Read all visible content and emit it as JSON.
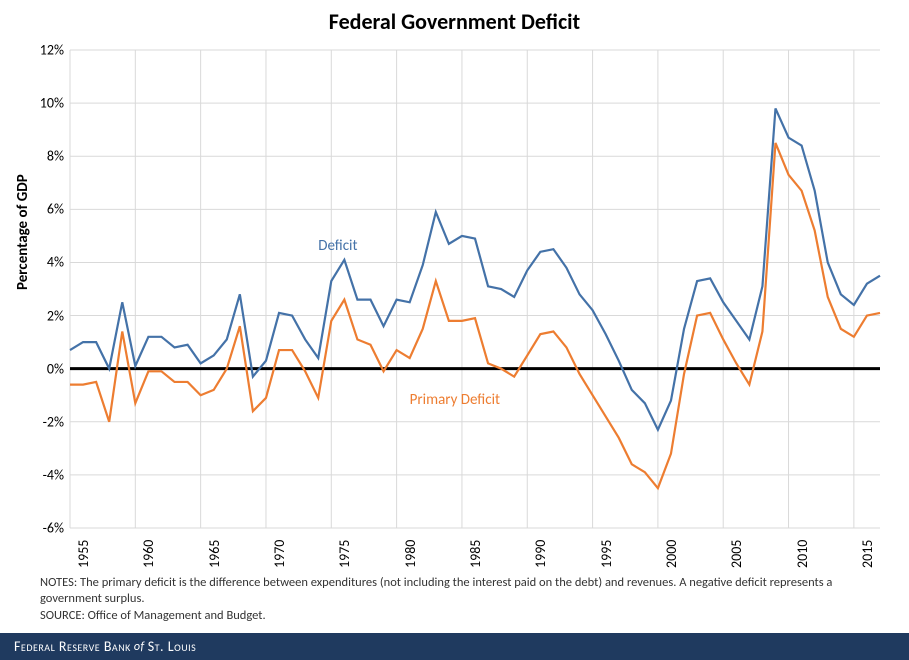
{
  "title": {
    "text": "Federal Government Deficit",
    "fontsize": 22,
    "fontweight": "bold",
    "color": "#000000"
  },
  "chart": {
    "type": "line",
    "background_color": "#ffffff",
    "grid_color": "#d9d9d9",
    "zero_line_color": "#000000",
    "zero_line_width": 3,
    "x_axis": {
      "min": 1955,
      "max": 2017,
      "ticks": [
        1955,
        1960,
        1965,
        1970,
        1975,
        1980,
        1985,
        1990,
        1995,
        2000,
        2005,
        2010,
        2015
      ],
      "label_fontsize": 14,
      "label_rotation": -90
    },
    "y_axis": {
      "label": "Percentage of GDP",
      "label_fontsize": 15,
      "label_fontweight": "bold",
      "min": -6,
      "max": 12,
      "tick_step": 2,
      "tick_suffix": "%",
      "tick_fontsize": 14
    },
    "series": [
      {
        "name": "Deficit",
        "label_text": "Deficit",
        "label_pos": {
          "x": 1974,
          "y": 4.6
        },
        "color": "#4472a8",
        "line_width": 2.2,
        "values": [
          0.7,
          1.0,
          1.0,
          0.0,
          2.5,
          0.1,
          1.2,
          1.2,
          0.8,
          0.9,
          0.2,
          0.5,
          1.1,
          2.8,
          -0.3,
          0.3,
          2.1,
          2.0,
          1.1,
          0.4,
          3.3,
          4.1,
          2.6,
          2.6,
          1.6,
          2.6,
          2.5,
          3.9,
          5.9,
          4.7,
          5.0,
          4.9,
          3.1,
          3.0,
          2.7,
          3.7,
          4.4,
          4.5,
          3.8,
          2.8,
          2.2,
          1.3,
          0.3,
          -0.8,
          -1.3,
          -2.3,
          -1.2,
          1.5,
          3.3,
          3.4,
          2.5,
          1.8,
          1.1,
          3.1,
          9.8,
          8.7,
          8.4,
          6.7,
          4.0,
          2.8,
          2.4,
          3.2,
          3.5
        ]
      },
      {
        "name": "Primary Deficit",
        "label_text": "Primary Deficit",
        "label_pos": {
          "x": 1981,
          "y": -1.2
        },
        "color": "#ed7d31",
        "line_width": 2.2,
        "values": [
          -0.6,
          -0.6,
          -0.5,
          -2.0,
          1.4,
          -1.3,
          -0.1,
          -0.1,
          -0.5,
          -0.5,
          -1.0,
          -0.8,
          0.0,
          1.6,
          -1.6,
          -1.1,
          0.7,
          0.7,
          -0.1,
          -1.1,
          1.8,
          2.6,
          1.1,
          0.9,
          -0.1,
          0.7,
          0.4,
          1.5,
          3.3,
          1.8,
          1.8,
          1.9,
          0.2,
          0.0,
          -0.3,
          0.5,
          1.3,
          1.4,
          0.8,
          -0.2,
          -1.0,
          -1.8,
          -2.6,
          -3.6,
          -3.9,
          -4.5,
          -3.2,
          -0.2,
          2.0,
          2.1,
          1.1,
          0.2,
          -0.6,
          1.4,
          8.5,
          7.3,
          6.7,
          5.2,
          2.7,
          1.5,
          1.2,
          2.0,
          2.1
        ]
      }
    ],
    "line_label_fontsize": 15
  },
  "notes": {
    "lines": [
      "NOTES: The primary deficit is the difference between  expenditures (not including the interest paid on the debt) and revenues. A negative deficit represents a government  surplus.",
      "SOURCE: Office of Management  and Budget."
    ],
    "fontsize": 12.5,
    "color": "#333333"
  },
  "footer": {
    "bank_prefix": "Federal Reserve Bank",
    "of_text": "of",
    "bank_suffix": "St. Louis",
    "background_color": "#1f3a5f",
    "text_color": "#ffffff",
    "fontsize": 14
  }
}
